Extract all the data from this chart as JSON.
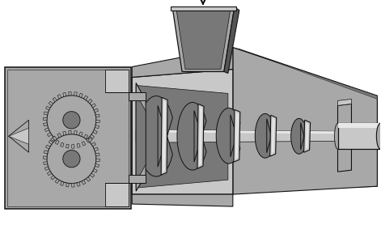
{
  "bg_color": "#ffffff",
  "c_light": "#c8c8c8",
  "c_mid": "#a8a8a8",
  "c_dark": "#787878",
  "c_darker": "#555555",
  "c_box": "#b0b0b0",
  "c_line": "#111111",
  "figsize": [
    4.71,
    2.78
  ],
  "dpi": 100
}
